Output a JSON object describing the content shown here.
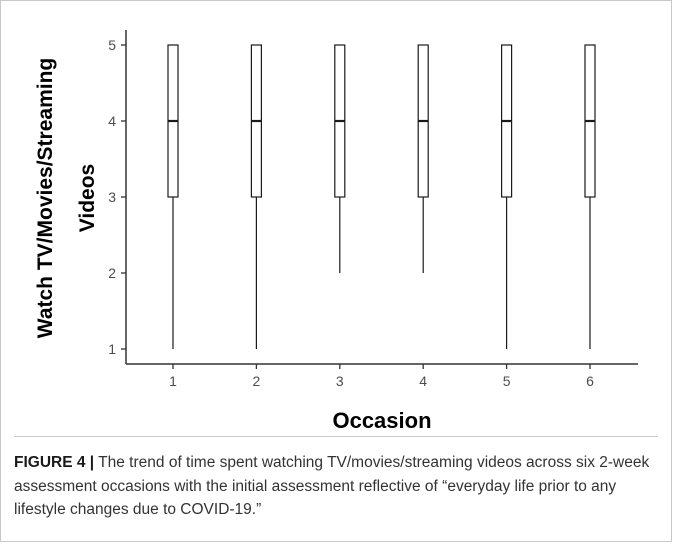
{
  "chart_data": {
    "type": "box",
    "xlabel": "Occasion",
    "ylabel_lines": [
      "Watch TV/Movies/Streaming",
      "Videos"
    ],
    "categories": [
      "1",
      "2",
      "3",
      "4",
      "5",
      "6"
    ],
    "y_ticks": [
      "1",
      "2",
      "3",
      "4",
      "5"
    ],
    "ylim": [
      1,
      5
    ],
    "boxes": [
      {
        "occasion": "1",
        "min": 1,
        "q1": 3,
        "median": 4,
        "q3": 5,
        "max": 5
      },
      {
        "occasion": "2",
        "min": 1,
        "q1": 3,
        "median": 4,
        "q3": 5,
        "max": 5
      },
      {
        "occasion": "3",
        "min": 2,
        "q1": 3,
        "median": 4,
        "q3": 5,
        "max": 5
      },
      {
        "occasion": "4",
        "min": 2,
        "q1": 3,
        "median": 4,
        "q3": 5,
        "max": 5
      },
      {
        "occasion": "5",
        "min": 1,
        "q1": 3,
        "median": 4,
        "q3": 5,
        "max": 5
      },
      {
        "occasion": "6",
        "min": 1,
        "q1": 3,
        "median": 4,
        "q3": 5,
        "max": 5
      }
    ],
    "grid": false,
    "colors": {
      "box_stroke": "#1a1a1a",
      "box_fill": "#ffffff",
      "axis": "#333333",
      "tick_text": "#4d4d4d"
    }
  },
  "caption": {
    "label": "FIGURE 4 |",
    "text": " The trend of time spent watching TV/movies/streaming videos across six 2-week assessment occasions with the initial assessment reflective of “everyday life prior to any lifestyle changes due to COVID-19.”"
  }
}
